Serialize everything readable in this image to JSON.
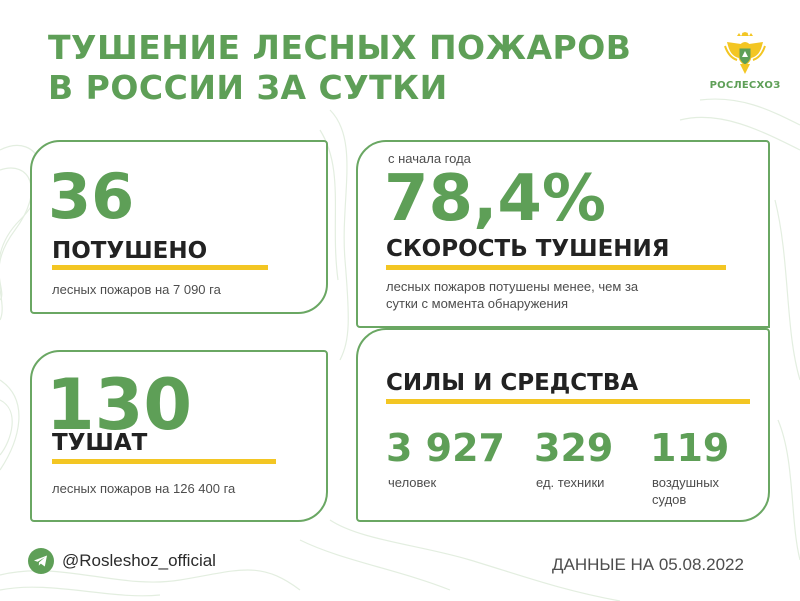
{
  "title": {
    "line1": "ТУШЕНИЕ ЛЕСНЫХ ПОЖАРОВ",
    "line2": "В РОССИИ ЗА СУТКИ"
  },
  "logo": {
    "text": "РОСЛЕСХОЗ",
    "icon": "double-headed-eagle-emblem"
  },
  "extinguished": {
    "value": "36",
    "label": "ПОТУШЕНО",
    "description": "лесных пожаров на 7 090 га"
  },
  "burning": {
    "value": "130",
    "label": "ТУШАТ",
    "description": "лесных пожаров на 126 400 га"
  },
  "speed": {
    "caption": "с начала года",
    "value": "78,4%",
    "label": "СКОРОСТЬ ТУШЕНИЯ",
    "description_line1": "лесных пожаров потушены менее, чем за",
    "description_line2": "сутки с момента обнаружения"
  },
  "forces": {
    "heading": "СИЛЫ И СРЕДСТВА",
    "people": {
      "value": "3 927",
      "label": "человек"
    },
    "vehicles": {
      "value": "329",
      "label": "ед. техники"
    },
    "aircraft": {
      "value": "119",
      "label_line1": "воздушных",
      "label_line2": "судов"
    }
  },
  "footer": {
    "telegram_handle": "@Rosleshoz_official",
    "telegram_icon": "telegram-icon",
    "date_text": "ДАННЫЕ НА 05.08.2022"
  },
  "colors": {
    "green": "#5e9f57",
    "yellow": "#f3c623",
    "border": "#6aa763"
  }
}
